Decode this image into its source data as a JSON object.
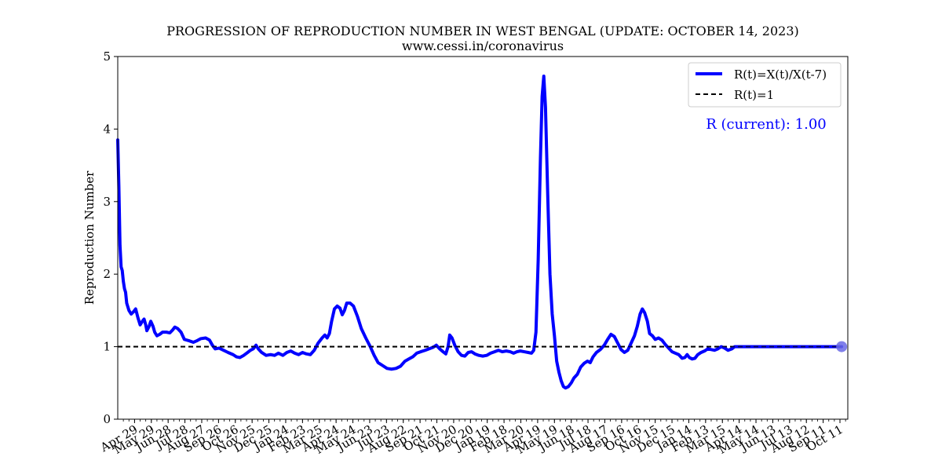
{
  "colors": {
    "series": "#0000ff",
    "reference": "#000000",
    "marker": "#6a6ae6"
  },
  "chart_data": {
    "type": "line",
    "title": "PROGRESSION OF REPRODUCTION NUMBER IN WEST BENGAL (UPDATE: OCTOBER 14, 2023)",
    "subtitle": "www.cessi.in/coronavirus",
    "ylabel": "Reproduction Number",
    "xlabel": "",
    "ylim": [
      0,
      5
    ],
    "yticks": [
      0,
      1,
      2,
      3,
      4,
      5
    ],
    "xlim": [
      "2020-03-30",
      "2023-10-25"
    ],
    "xticks": [
      {
        "date": "2020-04-29",
        "label": "Apr 29"
      },
      {
        "date": "2020-05-29",
        "label": "May 29"
      },
      {
        "date": "2020-06-28",
        "label": "Jun 28"
      },
      {
        "date": "2020-07-28",
        "label": "Jul 28"
      },
      {
        "date": "2020-08-27",
        "label": "Aug 27"
      },
      {
        "date": "2020-09-26",
        "label": "Sep 26"
      },
      {
        "date": "2020-10-26",
        "label": "Oct 26"
      },
      {
        "date": "2020-11-25",
        "label": "Nov 25"
      },
      {
        "date": "2020-12-25",
        "label": "Dec 25"
      },
      {
        "date": "2021-01-24",
        "label": "Jan 24"
      },
      {
        "date": "2021-02-23",
        "label": "Feb 23"
      },
      {
        "date": "2021-03-25",
        "label": "Mar 25"
      },
      {
        "date": "2021-04-24",
        "label": "Apr 24"
      },
      {
        "date": "2021-05-24",
        "label": "May 24"
      },
      {
        "date": "2021-06-23",
        "label": "Jun 23"
      },
      {
        "date": "2021-07-23",
        "label": "Jul 23"
      },
      {
        "date": "2021-08-22",
        "label": "Aug 22"
      },
      {
        "date": "2021-09-21",
        "label": "Sep 21"
      },
      {
        "date": "2021-10-21",
        "label": "Oct 21"
      },
      {
        "date": "2021-11-20",
        "label": "Nov 20"
      },
      {
        "date": "2021-12-20",
        "label": "Dec 20"
      },
      {
        "date": "2022-01-19",
        "label": "Jan 19"
      },
      {
        "date": "2022-02-18",
        "label": "Feb 18"
      },
      {
        "date": "2022-03-20",
        "label": "Mar 20"
      },
      {
        "date": "2022-04-19",
        "label": "Apr 19"
      },
      {
        "date": "2022-05-19",
        "label": "May 19"
      },
      {
        "date": "2022-06-18",
        "label": "Jun 18"
      },
      {
        "date": "2022-07-18",
        "label": "Jul 18"
      },
      {
        "date": "2022-08-17",
        "label": "Aug 17"
      },
      {
        "date": "2022-09-16",
        "label": "Sep 16"
      },
      {
        "date": "2022-10-16",
        "label": "Oct 16"
      },
      {
        "date": "2022-11-15",
        "label": "Nov 15"
      },
      {
        "date": "2022-12-15",
        "label": "Dec 15"
      },
      {
        "date": "2023-01-14",
        "label": "Jan 14"
      },
      {
        "date": "2023-02-13",
        "label": "Feb 13"
      },
      {
        "date": "2023-03-15",
        "label": "Mar 15"
      },
      {
        "date": "2023-04-14",
        "label": "Apr 14"
      },
      {
        "date": "2023-05-14",
        "label": "May 14"
      },
      {
        "date": "2023-06-13",
        "label": "Jun 13"
      },
      {
        "date": "2023-07-13",
        "label": "Jul 13"
      },
      {
        "date": "2023-08-12",
        "label": "Aug 12"
      },
      {
        "date": "2023-09-11",
        "label": "Sep 11"
      },
      {
        "date": "2023-10-11",
        "label": "Oct 11"
      }
    ],
    "grid": false,
    "legend_position": "top-right",
    "series": [
      {
        "name": "R(t)=X(t)/X(t-7)",
        "points": [
          [
            "2020-03-30",
            3.85
          ],
          [
            "2020-04-01",
            3.2
          ],
          [
            "2020-04-03",
            2.4
          ],
          [
            "2020-04-05",
            2.1
          ],
          [
            "2020-04-07",
            2.05
          ],
          [
            "2020-04-09",
            1.9
          ],
          [
            "2020-04-11",
            1.8
          ],
          [
            "2020-04-13",
            1.75
          ],
          [
            "2020-04-15",
            1.6
          ],
          [
            "2020-04-17",
            1.55
          ],
          [
            "2020-04-19",
            1.5
          ],
          [
            "2020-04-23",
            1.45
          ],
          [
            "2020-04-27",
            1.48
          ],
          [
            "2020-05-01",
            1.52
          ],
          [
            "2020-05-05",
            1.4
          ],
          [
            "2020-05-09",
            1.3
          ],
          [
            "2020-05-13",
            1.35
          ],
          [
            "2020-05-16",
            1.38
          ],
          [
            "2020-05-19",
            1.3
          ],
          [
            "2020-05-21",
            1.22
          ],
          [
            "2020-05-25",
            1.28
          ],
          [
            "2020-05-28",
            1.35
          ],
          [
            "2020-06-01",
            1.28
          ],
          [
            "2020-06-04",
            1.2
          ],
          [
            "2020-06-08",
            1.15
          ],
          [
            "2020-06-13",
            1.17
          ],
          [
            "2020-06-18",
            1.2
          ],
          [
            "2020-06-25",
            1.2
          ],
          [
            "2020-07-01",
            1.19
          ],
          [
            "2020-07-06",
            1.23
          ],
          [
            "2020-07-10",
            1.27
          ],
          [
            "2020-07-15",
            1.25
          ],
          [
            "2020-07-21",
            1.2
          ],
          [
            "2020-07-27",
            1.1
          ],
          [
            "2020-08-05",
            1.08
          ],
          [
            "2020-08-12",
            1.06
          ],
          [
            "2020-08-18",
            1.08
          ],
          [
            "2020-08-25",
            1.11
          ],
          [
            "2020-09-03",
            1.12
          ],
          [
            "2020-09-10",
            1.09
          ],
          [
            "2020-09-15",
            1.02
          ],
          [
            "2020-09-20",
            0.97
          ],
          [
            "2020-09-27",
            0.98
          ],
          [
            "2020-10-05",
            0.95
          ],
          [
            "2020-10-13",
            0.92
          ],
          [
            "2020-10-22",
            0.89
          ],
          [
            "2020-10-28",
            0.86
          ],
          [
            "2020-11-03",
            0.85
          ],
          [
            "2020-11-10",
            0.88
          ],
          [
            "2020-11-17",
            0.92
          ],
          [
            "2020-11-22",
            0.95
          ],
          [
            "2020-11-27",
            0.97
          ],
          [
            "2020-12-02",
            1.02
          ],
          [
            "2020-12-06",
            0.97
          ],
          [
            "2020-12-12",
            0.92
          ],
          [
            "2020-12-20",
            0.88
          ],
          [
            "2020-12-28",
            0.89
          ],
          [
            "2021-01-04",
            0.88
          ],
          [
            "2021-01-11",
            0.91
          ],
          [
            "2021-01-19",
            0.88
          ],
          [
            "2021-01-26",
            0.92
          ],
          [
            "2021-02-02",
            0.94
          ],
          [
            "2021-02-09",
            0.91
          ],
          [
            "2021-02-16",
            0.89
          ],
          [
            "2021-02-23",
            0.92
          ],
          [
            "2021-03-02",
            0.9
          ],
          [
            "2021-03-09",
            0.89
          ],
          [
            "2021-03-16",
            0.95
          ],
          [
            "2021-03-23",
            1.05
          ],
          [
            "2021-03-30",
            1.12
          ],
          [
            "2021-04-04",
            1.16
          ],
          [
            "2021-04-08",
            1.12
          ],
          [
            "2021-04-12",
            1.18
          ],
          [
            "2021-04-16",
            1.35
          ],
          [
            "2021-04-21",
            1.52
          ],
          [
            "2021-04-26",
            1.56
          ],
          [
            "2021-05-01",
            1.53
          ],
          [
            "2021-05-05",
            1.44
          ],
          [
            "2021-05-09",
            1.5
          ],
          [
            "2021-05-13",
            1.6
          ],
          [
            "2021-05-19",
            1.6
          ],
          [
            "2021-05-25",
            1.56
          ],
          [
            "2021-06-01",
            1.42
          ],
          [
            "2021-06-08",
            1.25
          ],
          [
            "2021-06-16",
            1.12
          ],
          [
            "2021-06-24",
            1.0
          ],
          [
            "2021-07-01",
            0.88
          ],
          [
            "2021-07-08",
            0.78
          ],
          [
            "2021-07-16",
            0.74
          ],
          [
            "2021-07-24",
            0.7
          ],
          [
            "2021-08-01",
            0.69
          ],
          [
            "2021-08-09",
            0.7
          ],
          [
            "2021-08-17",
            0.73
          ],
          [
            "2021-08-25",
            0.8
          ],
          [
            "2021-09-01",
            0.83
          ],
          [
            "2021-09-08",
            0.86
          ],
          [
            "2021-09-15",
            0.91
          ],
          [
            "2021-09-22",
            0.93
          ],
          [
            "2021-09-30",
            0.95
          ],
          [
            "2021-10-07",
            0.97
          ],
          [
            "2021-10-14",
            0.99
          ],
          [
            "2021-10-20",
            1.02
          ],
          [
            "2021-10-26",
            0.97
          ],
          [
            "2021-11-01",
            0.93
          ],
          [
            "2021-11-06",
            0.9
          ],
          [
            "2021-11-10",
            1.0
          ],
          [
            "2021-11-13",
            1.16
          ],
          [
            "2021-11-17",
            1.12
          ],
          [
            "2021-11-22",
            1.02
          ],
          [
            "2021-11-28",
            0.93
          ],
          [
            "2021-12-04",
            0.88
          ],
          [
            "2021-12-10",
            0.87
          ],
          [
            "2021-12-16",
            0.92
          ],
          [
            "2021-12-22",
            0.93
          ],
          [
            "2021-12-28",
            0.9
          ],
          [
            "2022-01-04",
            0.88
          ],
          [
            "2022-01-11",
            0.87
          ],
          [
            "2022-01-18",
            0.88
          ],
          [
            "2022-01-25",
            0.91
          ],
          [
            "2022-02-01",
            0.93
          ],
          [
            "2022-02-08",
            0.95
          ],
          [
            "2022-02-15",
            0.93
          ],
          [
            "2022-02-22",
            0.94
          ],
          [
            "2022-03-01",
            0.93
          ],
          [
            "2022-03-07",
            0.91
          ],
          [
            "2022-03-13",
            0.93
          ],
          [
            "2022-03-19",
            0.94
          ],
          [
            "2022-03-26",
            0.93
          ],
          [
            "2022-04-02",
            0.92
          ],
          [
            "2022-04-08",
            0.91
          ],
          [
            "2022-04-12",
            0.95
          ],
          [
            "2022-04-16",
            1.2
          ],
          [
            "2022-04-20",
            2.2
          ],
          [
            "2022-04-24",
            3.6
          ],
          [
            "2022-04-27",
            4.45
          ],
          [
            "2022-04-30",
            4.73
          ],
          [
            "2022-05-03",
            4.3
          ],
          [
            "2022-05-07",
            3.1
          ],
          [
            "2022-05-11",
            2.0
          ],
          [
            "2022-05-15",
            1.45
          ],
          [
            "2022-05-19",
            1.15
          ],
          [
            "2022-05-23",
            0.8
          ],
          [
            "2022-05-27",
            0.65
          ],
          [
            "2022-05-31",
            0.53
          ],
          [
            "2022-06-04",
            0.45
          ],
          [
            "2022-06-08",
            0.43
          ],
          [
            "2022-06-13",
            0.45
          ],
          [
            "2022-06-18",
            0.5
          ],
          [
            "2022-06-23",
            0.57
          ],
          [
            "2022-06-29",
            0.62
          ],
          [
            "2022-07-05",
            0.72
          ],
          [
            "2022-07-11",
            0.77
          ],
          [
            "2022-07-17",
            0.8
          ],
          [
            "2022-07-22",
            0.78
          ],
          [
            "2022-07-27",
            0.86
          ],
          [
            "2022-08-02",
            0.92
          ],
          [
            "2022-08-09",
            0.96
          ],
          [
            "2022-08-16",
            1.02
          ],
          [
            "2022-08-22",
            1.1
          ],
          [
            "2022-08-28",
            1.17
          ],
          [
            "2022-09-03",
            1.14
          ],
          [
            "2022-09-09",
            1.05
          ],
          [
            "2022-09-15",
            0.96
          ],
          [
            "2022-09-21",
            0.92
          ],
          [
            "2022-09-27",
            0.95
          ],
          [
            "2022-10-03",
            1.05
          ],
          [
            "2022-10-09",
            1.15
          ],
          [
            "2022-10-14",
            1.28
          ],
          [
            "2022-10-19",
            1.45
          ],
          [
            "2022-10-23",
            1.52
          ],
          [
            "2022-10-27",
            1.47
          ],
          [
            "2022-11-01",
            1.35
          ],
          [
            "2022-11-05",
            1.18
          ],
          [
            "2022-11-10",
            1.15
          ],
          [
            "2022-11-15",
            1.1
          ],
          [
            "2022-11-21",
            1.12
          ],
          [
            "2022-11-27",
            1.09
          ],
          [
            "2022-12-03",
            1.03
          ],
          [
            "2022-12-09",
            0.98
          ],
          [
            "2022-12-15",
            0.93
          ],
          [
            "2022-12-21",
            0.91
          ],
          [
            "2022-12-27",
            0.89
          ],
          [
            "2023-01-02",
            0.84
          ],
          [
            "2023-01-07",
            0.85
          ],
          [
            "2023-01-11",
            0.89
          ],
          [
            "2023-01-15",
            0.85
          ],
          [
            "2023-01-20",
            0.83
          ],
          [
            "2023-01-25",
            0.84
          ],
          [
            "2023-01-30",
            0.89
          ],
          [
            "2023-02-05",
            0.92
          ],
          [
            "2023-02-11",
            0.94
          ],
          [
            "2023-02-17",
            0.97
          ],
          [
            "2023-02-23",
            0.96
          ],
          [
            "2023-03-01",
            0.95
          ],
          [
            "2023-03-07",
            0.97
          ],
          [
            "2023-03-13",
            1.0
          ],
          [
            "2023-03-19",
            0.98
          ],
          [
            "2023-03-25",
            0.95
          ],
          [
            "2023-04-01",
            0.97
          ],
          [
            "2023-04-06",
            1.0
          ],
          [
            "2023-10-14",
            1.0
          ]
        ]
      },
      {
        "name": "R(t)=1",
        "points": [
          [
            "2020-03-30",
            1.0
          ],
          [
            "2023-10-14",
            1.0
          ]
        ]
      }
    ],
    "current_point": [
      "2023-10-14",
      1.0
    ],
    "annotation": "R (current): 1.00"
  }
}
